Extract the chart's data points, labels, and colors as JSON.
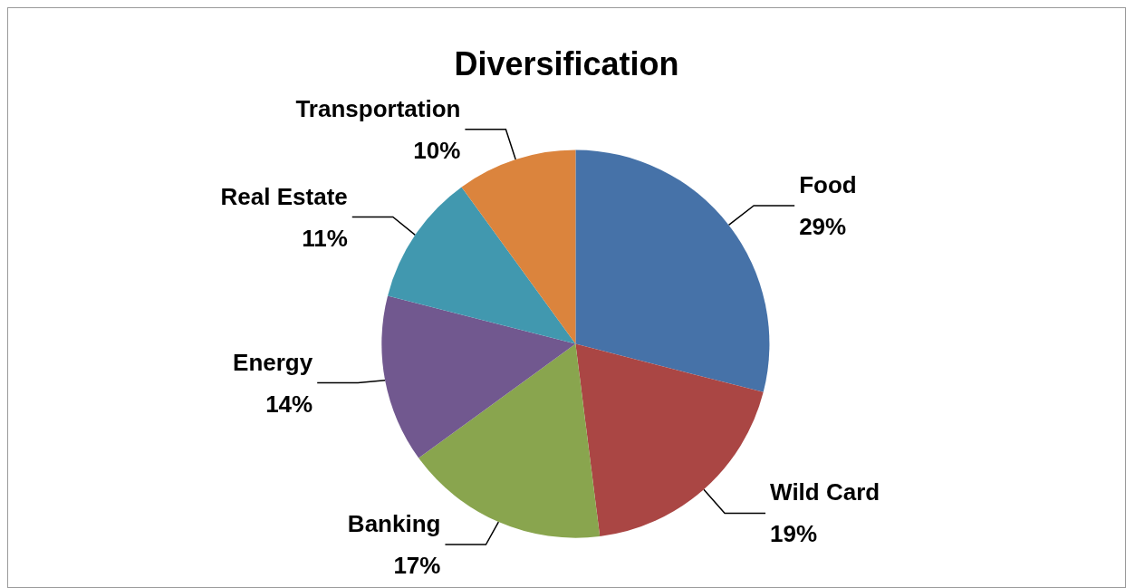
{
  "chart_data": {
    "type": "pie",
    "title": "Diversification",
    "categories": [
      "Food",
      "Wild Card",
      "Banking",
      "Energy",
      "Real Estate",
      "Transportation"
    ],
    "values": [
      29,
      19,
      17,
      14,
      11,
      10
    ],
    "value_labels": [
      "29%",
      "19%",
      "17%",
      "14%",
      "11%",
      "10%"
    ],
    "colors": [
      "#4672a8",
      "#aa4644",
      "#89a54e",
      "#71588f",
      "#4198af",
      "#db843d"
    ],
    "legend": false
  }
}
